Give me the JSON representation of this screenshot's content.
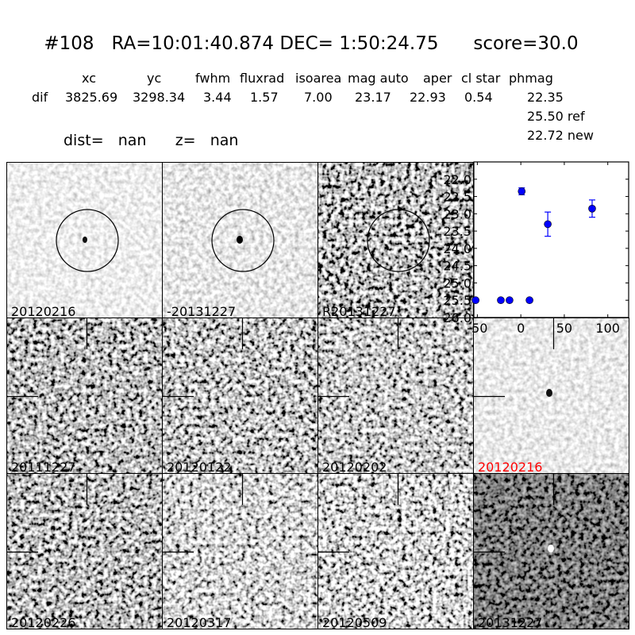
{
  "header": {
    "title": "#108   RA=10:01:40.874 DEC= 1:50:24.75      score=30.0",
    "columns": [
      "xc",
      "yc",
      "fwhm",
      "fluxrad",
      "isoarea",
      "mag auto",
      "aper",
      "cl star",
      "phmag"
    ],
    "row_label": "dif",
    "values": [
      "3825.69",
      "3298.34",
      "3.44",
      "1.57",
      "7.00",
      "23.17",
      "22.93",
      "0.54",
      "22.35"
    ],
    "phmag_ref": "25.50 ref",
    "phmag_new": "22.72 new",
    "dist_line": "dist=   nan      z=   nan"
  },
  "cutouts": [
    {
      "label": "20120216",
      "label_color": "#000000",
      "marker": "circle"
    },
    {
      "label": "-20131227",
      "label_color": "#000000",
      "marker": "circle"
    },
    {
      "label": "R20131227",
      "label_color": "#000000",
      "marker": "circle"
    },
    {
      "label": "20111227",
      "label_color": "#000000",
      "marker": "crosshair"
    },
    {
      "label": "20120122",
      "label_color": "#000000",
      "marker": "crosshair"
    },
    {
      "label": "20120202",
      "label_color": "#000000",
      "marker": "crosshair"
    },
    {
      "label": "20120216",
      "label_color": "#ff0000",
      "marker": "crosshair"
    },
    {
      "label": "20120226",
      "label_color": "#000000",
      "marker": "crosshair"
    },
    {
      "label": "20120317",
      "label_color": "#000000",
      "marker": "crosshair"
    },
    {
      "label": "20120509",
      "label_color": "#000000",
      "marker": "crosshair"
    },
    {
      "label": "20131227",
      "label_color": "#000000",
      "marker": "crosshair"
    }
  ],
  "chart_data": {
    "type": "scatter",
    "title": "",
    "xlabel": "",
    "ylabel": "",
    "xlim": [
      -54,
      124
    ],
    "ylim": [
      26.0,
      21.5
    ],
    "y_inverted": true,
    "xticks": [
      "-50",
      "0",
      "50",
      "100"
    ],
    "xtick_values": [
      -50,
      0,
      50,
      100
    ],
    "yticks": [
      "22.0",
      "22.5",
      "23.0",
      "23.5",
      "24.0",
      "24.5",
      "25.0",
      "25.5",
      "26.0"
    ],
    "ytick_values": [
      22.0,
      22.5,
      23.0,
      23.5,
      24.0,
      24.5,
      25.0,
      25.5,
      26.0
    ],
    "color": "#0000ff",
    "points": [
      {
        "x": -52,
        "y": 25.5,
        "err": 0.05
      },
      {
        "x": -23,
        "y": 25.5,
        "err": 0.05
      },
      {
        "x": -13,
        "y": 25.5,
        "err": 0.05
      },
      {
        "x": 1,
        "y": 22.35,
        "err": 0.1
      },
      {
        "x": 10,
        "y": 25.5,
        "err": 0.05
      },
      {
        "x": 31,
        "y": 23.3,
        "err": 0.35
      },
      {
        "x": 82,
        "y": 22.85,
        "err": 0.25
      }
    ],
    "grid": false
  }
}
